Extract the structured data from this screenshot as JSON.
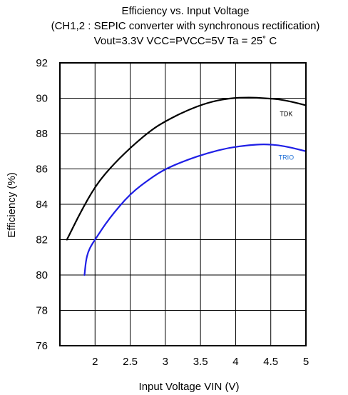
{
  "chart_data": {
    "type": "line",
    "title": "Efficiency vs. Input Voltage",
    "subtitle": "(CH1,2 : SEPIC converter with synchronous rectification)",
    "subtitle2": "Vout=3.3V   VCC=PVCC=5V   Ta = 25˚ C",
    "xlabel": "Input Voltage VIN (V)",
    "ylabel": "Efficiency  (%)",
    "xlim": [
      1.5,
      5
    ],
    "ylim": [
      76,
      92
    ],
    "xticks": [
      2,
      2.5,
      3,
      3.5,
      4,
      4.5,
      5
    ],
    "xtick_labels": [
      "2",
      "2.5",
      "3",
      "3.5",
      "4",
      "4.5",
      "5"
    ],
    "yticks": [
      76,
      78,
      80,
      82,
      84,
      86,
      88,
      90,
      92
    ],
    "ytick_labels": [
      "76",
      "78",
      "80",
      "82",
      "84",
      "86",
      "88",
      "90",
      "92"
    ],
    "grid": true,
    "series": [
      {
        "name": "TDK",
        "color": "#000000",
        "label_color": "#000000",
        "x": [
          1.6,
          1.8,
          2.0,
          2.2,
          2.5,
          2.8,
          3.0,
          3.3,
          3.6,
          3.9,
          4.2,
          4.4,
          4.6,
          4.8,
          5.0
        ],
        "y": [
          82.0,
          83.6,
          85.0,
          86.0,
          87.2,
          88.2,
          88.7,
          89.3,
          89.75,
          90.0,
          90.05,
          90.0,
          89.95,
          89.8,
          89.6
        ]
      },
      {
        "name": "TRIO",
        "color": "#1f1fe6",
        "label_color": "#1f6fd6",
        "x": [
          1.85,
          1.87,
          1.9,
          1.95,
          2.0,
          2.2,
          2.5,
          2.8,
          3.0,
          3.3,
          3.6,
          3.9,
          4.2,
          4.4,
          4.6,
          4.8,
          5.0
        ],
        "y": [
          80.0,
          80.8,
          81.3,
          81.7,
          82.0,
          83.2,
          84.6,
          85.5,
          86.0,
          86.5,
          86.9,
          87.2,
          87.35,
          87.4,
          87.35,
          87.2,
          87.0
        ]
      }
    ]
  }
}
